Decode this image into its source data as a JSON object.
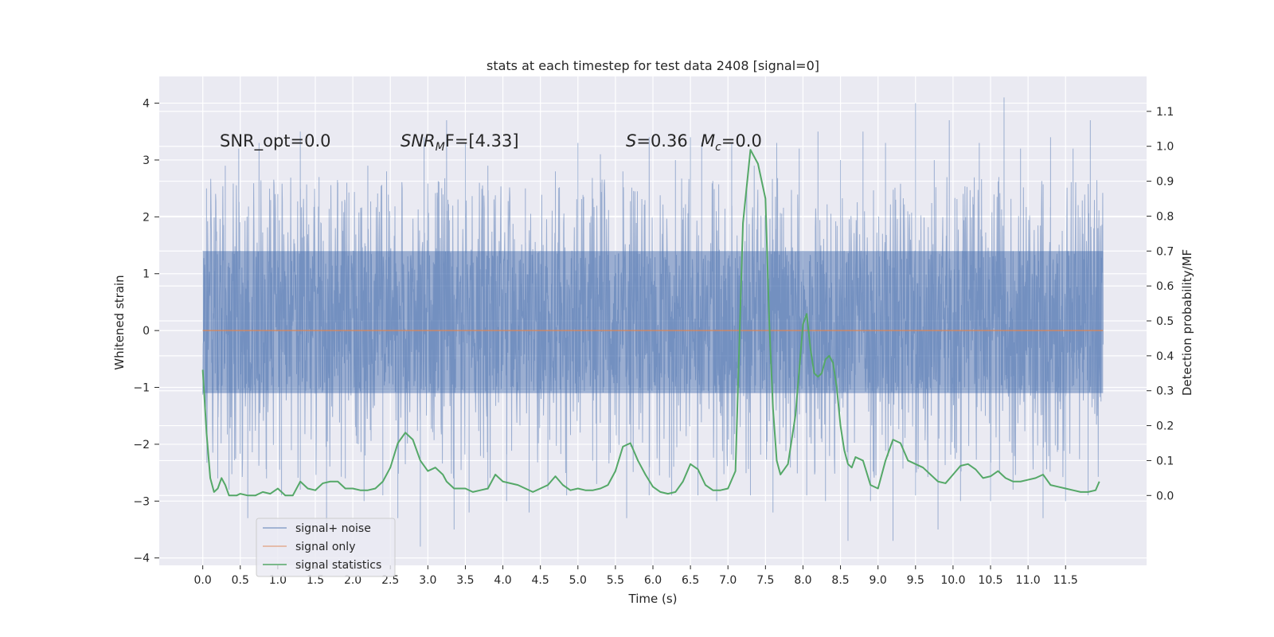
{
  "chart_data": {
    "type": "line",
    "title": "stats at each timestep for test data 2408 [signal=0]",
    "xlabel": "Time (s)",
    "ylabel": "Whitened strain",
    "y2label": "Detection probability/MF",
    "xlim": [
      -0.58,
      12.58
    ],
    "ylim": [
      -4.13,
      4.47
    ],
    "y2lim": [
      -0.2,
      1.2
    ],
    "xticks": [
      0.0,
      0.5,
      1.0,
      1.5,
      2.0,
      2.5,
      3.0,
      3.5,
      4.0,
      4.5,
      5.0,
      5.5,
      6.0,
      6.5,
      7.0,
      7.5,
      8.0,
      8.5,
      9.0,
      9.5,
      10.0,
      10.5,
      11.0,
      11.5
    ],
    "xtick_labels": [
      "0.0",
      "0.5",
      "1.0",
      "1.5",
      "2.0",
      "2.5",
      "3.0",
      "3.5",
      "4.0",
      "4.5",
      "5.0",
      "5.5",
      "6.0",
      "6.5",
      "7.0",
      "7.5",
      "8.0",
      "8.5",
      "9.0",
      "9.5",
      "10.0",
      "10.5",
      "11.0",
      "11.5"
    ],
    "yticks": [
      4,
      3,
      2,
      1,
      0,
      -1,
      -2,
      -3,
      -4
    ],
    "ytick_labels": [
      "4",
      "3",
      "2",
      "1",
      "0",
      "−1",
      "−2",
      "−3",
      "−4"
    ],
    "y2ticks": [
      1.1,
      1.0,
      0.9,
      0.8,
      0.7,
      0.6,
      0.5,
      0.4,
      0.3,
      0.2,
      0.1,
      0.0
    ],
    "y2tick_labels": [
      "1.1",
      "1.0",
      "0.9",
      "0.8",
      "0.7",
      "0.6",
      "0.5",
      "0.4",
      "0.3",
      "0.2",
      "0.1",
      "0.0"
    ],
    "grid": true,
    "legend_position": "lower-left",
    "annotations": {
      "snr_opt": "SNR_opt=0.0",
      "snr_mf_main": "SNR",
      "snr_mf_sub": "M",
      "snr_mf_rest": "F=[4.33]",
      "s_main": "S",
      "s_rest": "=0.36",
      "mc_main": "M",
      "mc_sub": "c",
      "mc_rest": "=0.0"
    },
    "series": [
      {
        "name": "signal+ noise",
        "color": "#4c72b0",
        "opacity": 0.5,
        "duration": 12.0,
        "envelope": [
          -1.1,
          1.4
        ],
        "peaks_up": [
          [
            0.05,
            2.5
          ],
          [
            0.3,
            2.9
          ],
          [
            0.48,
            3.2
          ],
          [
            0.75,
            3.3
          ],
          [
            1.0,
            2.4
          ],
          [
            1.3,
            3.5
          ],
          [
            1.55,
            2.7
          ],
          [
            1.8,
            2.6
          ],
          [
            2.2,
            2.9
          ],
          [
            2.45,
            2.8
          ],
          [
            2.95,
            3.4
          ],
          [
            3.25,
            3.7
          ],
          [
            3.5,
            3.3
          ],
          [
            3.8,
            2.9
          ],
          [
            4.3,
            2.5
          ],
          [
            4.7,
            2.8
          ],
          [
            5.0,
            3.3
          ],
          [
            5.3,
            3.1
          ],
          [
            5.6,
            2.8
          ],
          [
            5.95,
            3.4
          ],
          [
            6.3,
            3.0
          ],
          [
            6.5,
            3.4
          ],
          [
            6.65,
            3.3
          ],
          [
            7.05,
            3.3
          ],
          [
            7.35,
            2.9
          ],
          [
            7.65,
            3.3
          ],
          [
            7.95,
            3.2
          ],
          [
            8.2,
            3.5
          ],
          [
            8.5,
            3.0
          ],
          [
            8.8,
            3.5
          ],
          [
            9.1,
            3.3
          ],
          [
            9.5,
            4.0
          ],
          [
            9.75,
            3.0
          ],
          [
            9.95,
            3.7
          ],
          [
            10.35,
            3.3
          ],
          [
            10.68,
            4.1
          ],
          [
            10.9,
            3.2
          ],
          [
            11.3,
            3.4
          ],
          [
            11.6,
            3.2
          ],
          [
            11.83,
            3.7
          ]
        ],
        "peaks_down": [
          [
            0.2,
            -2.6
          ],
          [
            0.35,
            -2.8
          ],
          [
            0.6,
            -3.3
          ],
          [
            0.85,
            -2.6
          ],
          [
            1.05,
            -2.9
          ],
          [
            1.3,
            -2.8
          ],
          [
            1.65,
            -3.4
          ],
          [
            1.9,
            -2.6
          ],
          [
            2.15,
            -3.0
          ],
          [
            2.4,
            -2.9
          ],
          [
            2.6,
            -3.3
          ],
          [
            2.9,
            -3.8
          ],
          [
            3.35,
            -3.5
          ],
          [
            3.55,
            -3.2
          ],
          [
            3.8,
            -2.8
          ],
          [
            4.05,
            -3.0
          ],
          [
            4.35,
            -3.2
          ],
          [
            4.6,
            -2.8
          ],
          [
            4.85,
            -2.9
          ],
          [
            5.25,
            -2.7
          ],
          [
            5.65,
            -3.3
          ],
          [
            5.95,
            -2.9
          ],
          [
            6.25,
            -2.9
          ],
          [
            6.6,
            -2.9
          ],
          [
            6.85,
            -3.0
          ],
          [
            7.3,
            -2.9
          ],
          [
            7.6,
            -3.2
          ],
          [
            8.05,
            -2.9
          ],
          [
            8.3,
            -3.0
          ],
          [
            8.6,
            -3.7
          ],
          [
            8.9,
            -3.0
          ],
          [
            9.2,
            -3.7
          ],
          [
            9.5,
            -2.9
          ],
          [
            9.8,
            -3.5
          ],
          [
            10.1,
            -3.0
          ],
          [
            10.5,
            -3.0
          ],
          [
            10.8,
            -2.8
          ],
          [
            11.2,
            -3.3
          ],
          [
            11.5,
            -3.0
          ],
          [
            11.8,
            -2.9
          ]
        ]
      },
      {
        "name": "signal only",
        "color": "#dd8452",
        "x": [
          0.0,
          12.0
        ],
        "y": [
          0.0,
          0.0
        ]
      },
      {
        "name": "signal statistics",
        "color": "#55a868",
        "axis": "right",
        "x": [
          0.0,
          0.05,
          0.1,
          0.15,
          0.2,
          0.25,
          0.3,
          0.35,
          0.4,
          0.45,
          0.5,
          0.6,
          0.7,
          0.8,
          0.9,
          1.0,
          1.1,
          1.2,
          1.3,
          1.4,
          1.5,
          1.6,
          1.7,
          1.8,
          1.9,
          2.0,
          2.1,
          2.2,
          2.3,
          2.4,
          2.5,
          2.6,
          2.7,
          2.8,
          2.9,
          3.0,
          3.1,
          3.2,
          3.25,
          3.3,
          3.35,
          3.4,
          3.5,
          3.6,
          3.7,
          3.8,
          3.9,
          4.0,
          4.2,
          4.4,
          4.6,
          4.7,
          4.8,
          4.9,
          5.0,
          5.1,
          5.2,
          5.3,
          5.4,
          5.5,
          5.6,
          5.7,
          5.8,
          5.9,
          6.0,
          6.1,
          6.2,
          6.3,
          6.4,
          6.5,
          6.6,
          6.7,
          6.8,
          6.9,
          7.0,
          7.1,
          7.2,
          7.3,
          7.4,
          7.5,
          7.55,
          7.6,
          7.65,
          7.7,
          7.8,
          7.9,
          8.0,
          8.05,
          8.1,
          8.15,
          8.2,
          8.25,
          8.3,
          8.35,
          8.4,
          8.45,
          8.5,
          8.55,
          8.6,
          8.65,
          8.7,
          8.8,
          8.9,
          9.0,
          9.1,
          9.2,
          9.3,
          9.4,
          9.5,
          9.6,
          9.7,
          9.8,
          9.9,
          10.0,
          10.1,
          10.2,
          10.3,
          10.4,
          10.5,
          10.6,
          10.7,
          10.8,
          10.9,
          11.0,
          11.1,
          11.2,
          11.3,
          11.4,
          11.5,
          11.6,
          11.7,
          11.8,
          11.9,
          11.95
        ],
        "y": [
          0.36,
          0.18,
          0.05,
          0.01,
          0.02,
          0.05,
          0.03,
          0.0,
          0.0,
          0.0,
          0.005,
          0.0,
          0.0,
          0.01,
          0.005,
          0.02,
          0.0,
          0.0,
          0.04,
          0.02,
          0.015,
          0.035,
          0.04,
          0.04,
          0.02,
          0.02,
          0.015,
          0.015,
          0.02,
          0.04,
          0.08,
          0.15,
          0.18,
          0.16,
          0.1,
          0.07,
          0.08,
          0.06,
          0.04,
          0.03,
          0.02,
          0.02,
          0.02,
          0.01,
          0.015,
          0.02,
          0.06,
          0.04,
          0.03,
          0.01,
          0.03,
          0.055,
          0.03,
          0.015,
          0.02,
          0.015,
          0.015,
          0.02,
          0.03,
          0.07,
          0.14,
          0.15,
          0.1,
          0.06,
          0.025,
          0.01,
          0.005,
          0.01,
          0.04,
          0.09,
          0.075,
          0.03,
          0.015,
          0.015,
          0.02,
          0.07,
          0.78,
          0.99,
          0.95,
          0.85,
          0.5,
          0.25,
          0.1,
          0.06,
          0.09,
          0.23,
          0.49,
          0.52,
          0.42,
          0.35,
          0.34,
          0.35,
          0.39,
          0.4,
          0.38,
          0.31,
          0.2,
          0.13,
          0.09,
          0.08,
          0.11,
          0.1,
          0.03,
          0.02,
          0.1,
          0.16,
          0.15,
          0.1,
          0.09,
          0.08,
          0.06,
          0.04,
          0.035,
          0.06,
          0.085,
          0.09,
          0.075,
          0.05,
          0.055,
          0.07,
          0.05,
          0.04,
          0.04,
          0.045,
          0.05,
          0.06,
          0.03,
          0.025,
          0.02,
          0.015,
          0.01,
          0.01,
          0.015,
          0.04
        ]
      }
    ]
  }
}
